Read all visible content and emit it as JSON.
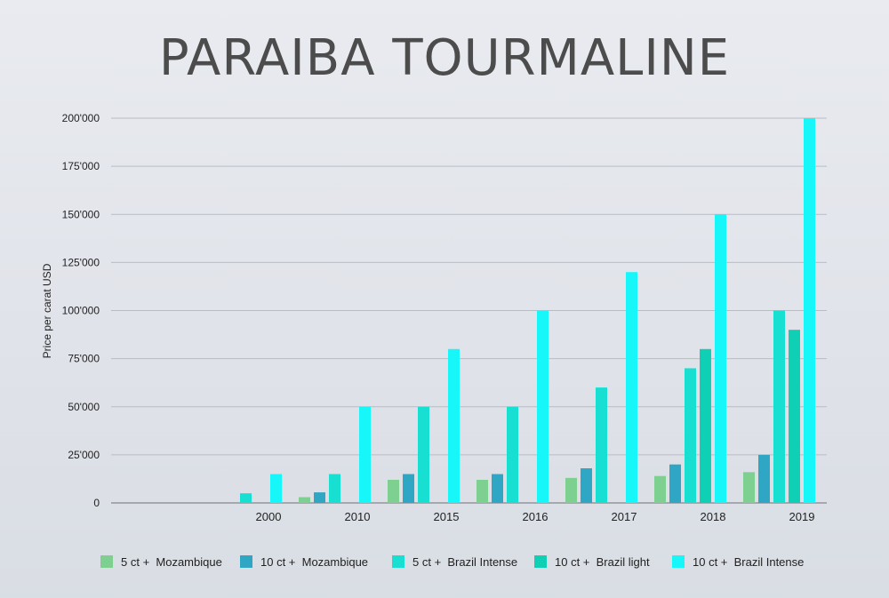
{
  "chart_data": {
    "type": "bar",
    "title": "PARAIBA TOURMALINE",
    "xlabel": "",
    "ylabel": "Price per carat USD",
    "ylim": [
      0,
      200000
    ],
    "yticks": [
      "0",
      "25'000",
      "50'000",
      "75'000",
      "100'000",
      "125'000",
      "150'000",
      "175'000",
      "200'000"
    ],
    "categories": [
      "",
      "2000",
      "2010",
      "2015",
      "2016",
      "2017",
      "2018",
      "2019"
    ],
    "grid": true,
    "legend_position": "bottom",
    "series": [
      {
        "name": "5 ct +  Mozambique",
        "color": "#7dd08f",
        "values": [
          null,
          null,
          3000,
          12000,
          12000,
          13000,
          14000,
          16000
        ]
      },
      {
        "name": "10 ct +  Mozambique",
        "color": "#2fa6c4",
        "values": [
          null,
          null,
          5500,
          15000,
          15000,
          18000,
          20000,
          25000
        ]
      },
      {
        "name": "5 ct +  Brazil Intense",
        "color": "#17dfd1",
        "values": [
          null,
          5000,
          15000,
          50000,
          50000,
          60000,
          70000,
          100000
        ]
      },
      {
        "name": "10 ct +  Brazil light",
        "color": "#0fd0b4",
        "values": [
          null,
          null,
          null,
          null,
          null,
          null,
          80000,
          90000
        ]
      },
      {
        "name": "10 ct +  Brazil Intense",
        "color": "#17f7f9",
        "values": [
          null,
          15000,
          50000,
          80000,
          100000,
          120000,
          150000,
          200000
        ]
      }
    ]
  }
}
